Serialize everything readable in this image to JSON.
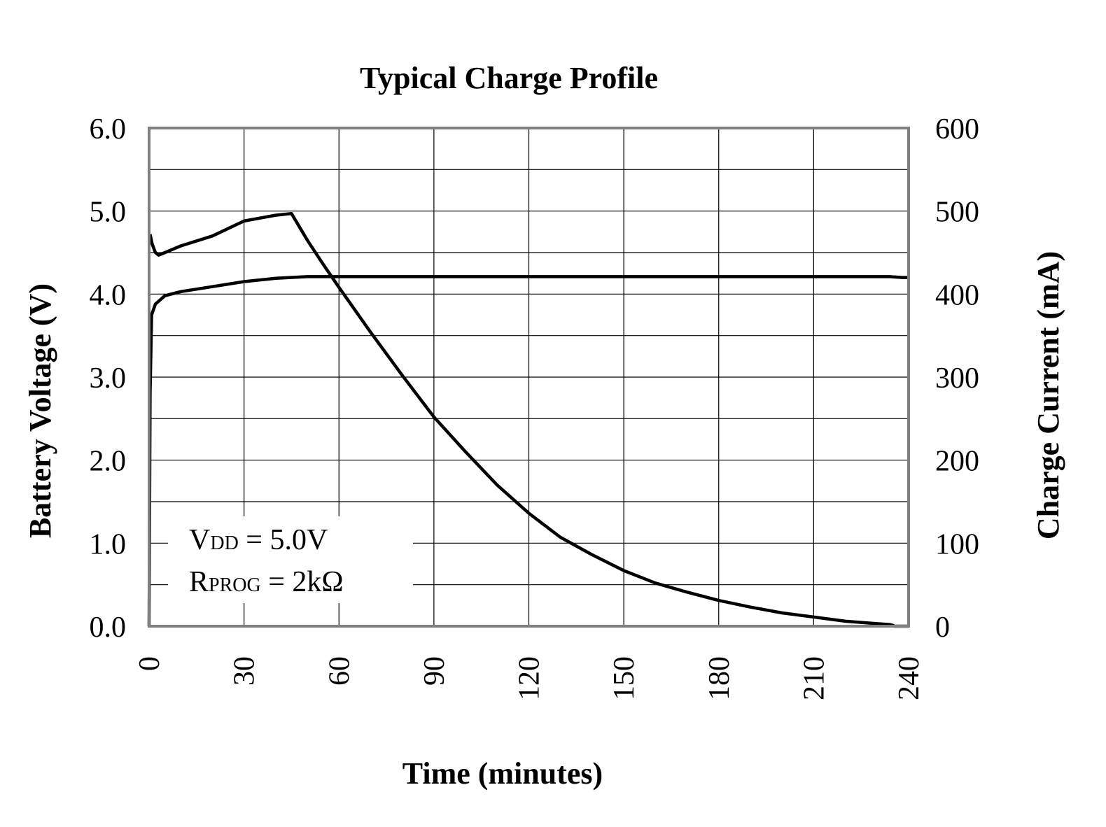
{
  "chart_data": {
    "type": "line",
    "title": "Typical Charge Profile",
    "xlabel": "Time (minutes)",
    "ylabel_left": "Battery Voltage (V)",
    "ylabel_right": "Charge Current (mA)",
    "xlim": [
      0,
      240
    ],
    "ylim_left": [
      0,
      6
    ],
    "ylim_right": [
      0,
      600
    ],
    "x_ticks": [
      "0",
      "30",
      "60",
      "90",
      "120",
      "150",
      "180",
      "210",
      "240"
    ],
    "y_left_ticks": [
      "0.0",
      "1.0",
      "2.0",
      "3.0",
      "4.0",
      "5.0",
      "6.0"
    ],
    "y_right_ticks": [
      "0",
      "100",
      "200",
      "300",
      "400",
      "500",
      "600"
    ],
    "grid": true,
    "annotation": {
      "line1_main": "V",
      "line1_sub": "DD",
      "line1_rest": " = 5.0V",
      "line2_main": "R",
      "line2_sub": "PROG",
      "line2_rest": " = 2kΩ"
    },
    "series": [
      {
        "axis": "left",
        "color": "#000000",
        "points": [
          [
            0,
            0
          ],
          [
            0.3,
            2.8
          ],
          [
            0.8,
            3.75
          ],
          [
            2,
            3.88
          ],
          [
            5,
            3.98
          ],
          [
            10,
            4.03
          ],
          [
            20,
            4.09
          ],
          [
            30,
            4.15
          ],
          [
            40,
            4.19
          ],
          [
            50,
            4.21
          ],
          [
            60,
            4.21
          ],
          [
            90,
            4.21
          ],
          [
            120,
            4.21
          ],
          [
            150,
            4.21
          ],
          [
            180,
            4.21
          ],
          [
            210,
            4.21
          ],
          [
            234,
            4.21
          ],
          [
            238,
            4.2
          ],
          [
            240,
            4.2
          ]
        ]
      },
      {
        "axis": "right",
        "color": "#000000",
        "points": [
          [
            0.3,
            472
          ],
          [
            1,
            460
          ],
          [
            2,
            450
          ],
          [
            3,
            447
          ],
          [
            5,
            450
          ],
          [
            10,
            458
          ],
          [
            20,
            470
          ],
          [
            30,
            488
          ],
          [
            40,
            495
          ],
          [
            45,
            497
          ],
          [
            50,
            465
          ],
          [
            55,
            436
          ],
          [
            60,
            408
          ],
          [
            70,
            354
          ],
          [
            80,
            302
          ],
          [
            90,
            252
          ],
          [
            100,
            210
          ],
          [
            110,
            170
          ],
          [
            120,
            136
          ],
          [
            130,
            107
          ],
          [
            140,
            86
          ],
          [
            150,
            67
          ],
          [
            160,
            52
          ],
          [
            170,
            41
          ],
          [
            180,
            31
          ],
          [
            190,
            23
          ],
          [
            200,
            16
          ],
          [
            210,
            11
          ],
          [
            220,
            6
          ],
          [
            230,
            3
          ],
          [
            234,
            2
          ],
          [
            235,
            1
          ],
          [
            235.5,
            0
          ],
          [
            240,
            0
          ]
        ]
      }
    ]
  }
}
